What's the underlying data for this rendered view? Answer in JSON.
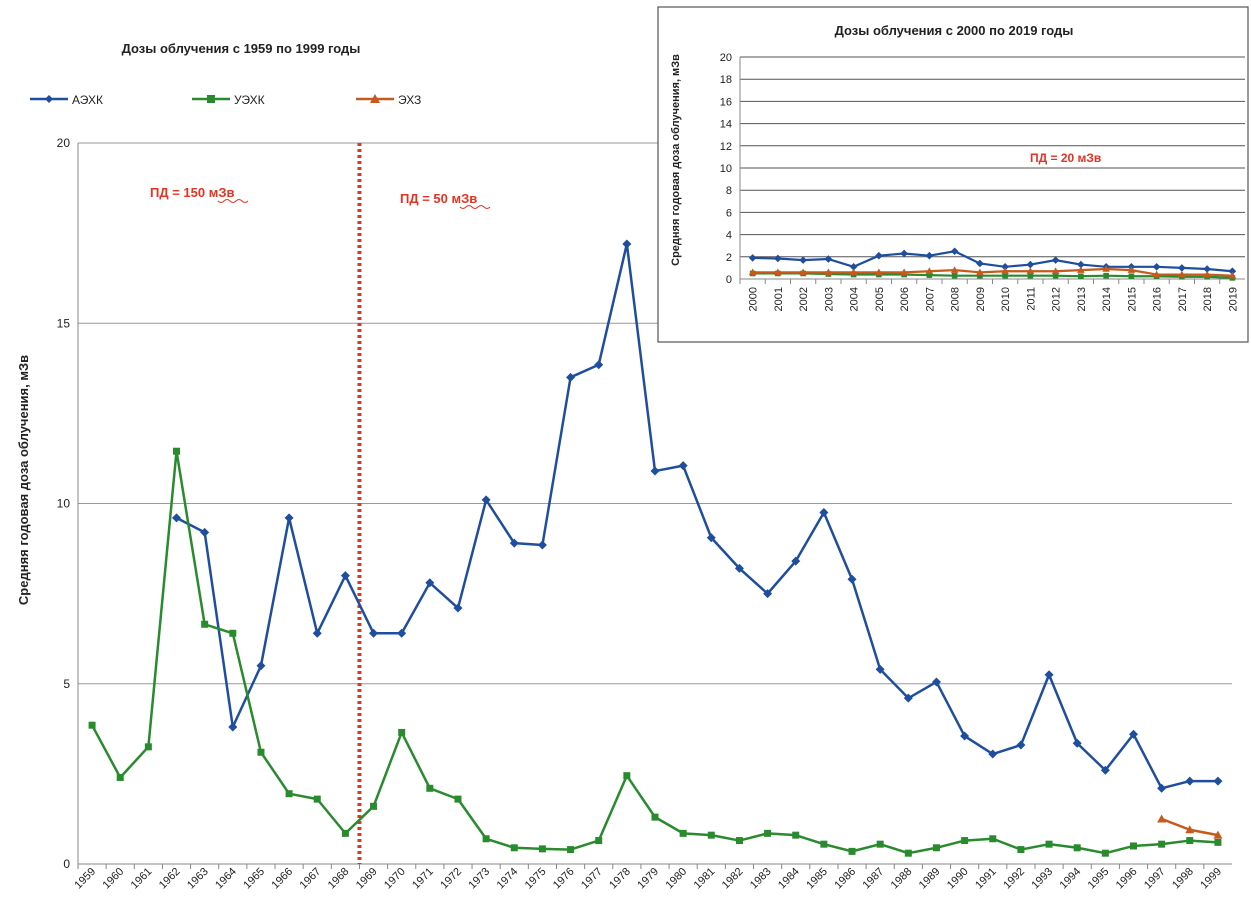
{
  "chart_data": [
    {
      "type": "line",
      "title": "Дозы облучения с 1959 по 1999 годы",
      "ylabel": "Средняя годовая  доза  облучения,  мЗв",
      "xlabel": "",
      "ylim": [
        0,
        20
      ],
      "yticks": [
        "0",
        "5",
        "10",
        "15",
        "20"
      ],
      "grid": true,
      "legend_position": "top-left",
      "x": [
        "1959",
        "1960",
        "1961",
        "1962",
        "1963",
        "1964",
        "1965",
        "1966",
        "1967",
        "1968",
        "1969",
        "1970",
        "1971",
        "1972",
        "1973",
        "1974",
        "1975",
        "1976",
        "1977",
        "1978",
        "1979",
        "1980",
        "1981",
        "1982",
        "1983",
        "1984",
        "1985",
        "1986",
        "1987",
        "1988",
        "1989",
        "1990",
        "1991",
        "1992",
        "1993",
        "1994",
        "1995",
        "1996",
        "1997",
        "1998",
        "1999"
      ],
      "series": [
        {
          "name": "АЭХК",
          "color": "#1f4e9f",
          "marker": "diamond",
          "values": [
            null,
            null,
            null,
            9.6,
            9.2,
            3.8,
            5.5,
            9.6,
            6.4,
            8.0,
            6.4,
            6.4,
            7.8,
            7.1,
            10.1,
            8.9,
            8.85,
            13.5,
            13.85,
            17.2,
            10.9,
            11.05,
            9.05,
            8.2,
            7.5,
            8.4,
            9.75,
            7.9,
            5.4,
            4.6,
            5.05,
            3.55,
            3.05,
            3.3,
            5.25,
            3.35,
            2.6,
            3.6,
            2.1,
            2.3,
            2.3
          ]
        },
        {
          "name": "УЭХК",
          "color": "#2a8a2e",
          "marker": "square",
          "values": [
            3.85,
            2.4,
            3.25,
            11.45,
            6.65,
            6.4,
            3.1,
            1.95,
            1.8,
            0.85,
            1.6,
            3.65,
            2.1,
            1.8,
            0.7,
            0.45,
            0.42,
            0.4,
            0.65,
            2.45,
            1.3,
            0.85,
            0.8,
            0.65,
            0.85,
            0.8,
            0.55,
            0.35,
            0.55,
            0.3,
            0.45,
            0.65,
            0.7,
            0.4,
            0.55,
            0.45,
            0.3,
            0.5,
            0.55,
            0.65,
            0.6
          ]
        },
        {
          "name": "ЭХЗ",
          "color": "#c65a1c",
          "marker": "triangle",
          "values": [
            null,
            null,
            null,
            null,
            null,
            null,
            null,
            null,
            null,
            null,
            null,
            null,
            null,
            null,
            null,
            null,
            null,
            null,
            null,
            null,
            null,
            null,
            null,
            null,
            null,
            null,
            null,
            null,
            null,
            null,
            null,
            null,
            null,
            null,
            null,
            null,
            null,
            null,
            1.25,
            0.95,
            0.8
          ]
        }
      ],
      "annotations": [
        {
          "text": "ПД = 150 мЗв",
          "color": "#e53323"
        },
        {
          "text": "ПД = 50 мЗв",
          "color": "#e53323"
        }
      ],
      "threshold_line": {
        "between": [
          "1968",
          "1969"
        ],
        "color": "#e53323",
        "style": "dotted"
      }
    },
    {
      "type": "line",
      "title": "Дозы облучения с  2000 по 2019 годы",
      "ylabel": "Средняя  годовая  доза облучения,  мЗв",
      "xlabel": "",
      "ylim": [
        0,
        20
      ],
      "yticks": [
        "0",
        "2",
        "4",
        "6",
        "8",
        "10",
        "12",
        "14",
        "16",
        "18",
        "20"
      ],
      "grid": true,
      "x": [
        "2000",
        "2001",
        "2002",
        "2003",
        "2004",
        "2005",
        "2006",
        "2007",
        "2008",
        "2009",
        "2010",
        "2011",
        "2012",
        "2013",
        "2014",
        "2015",
        "2016",
        "2017",
        "2018",
        "2019"
      ],
      "series": [
        {
          "name": "АЭХК",
          "color": "#1f4e9f",
          "marker": "diamond",
          "values": [
            1.9,
            1.85,
            1.7,
            1.8,
            1.1,
            2.1,
            2.3,
            2.1,
            2.5,
            1.4,
            1.1,
            1.3,
            1.7,
            1.3,
            1.1,
            1.1,
            1.1,
            1.0,
            0.9,
            0.7
          ]
        },
        {
          "name": "УЭХК",
          "color": "#2a8a2e",
          "marker": "square",
          "values": [
            0.5,
            0.5,
            0.5,
            0.45,
            0.4,
            0.4,
            0.4,
            0.35,
            0.3,
            0.3,
            0.3,
            0.3,
            0.3,
            0.25,
            0.3,
            0.25,
            0.25,
            0.2,
            0.2,
            0.1
          ]
        },
        {
          "name": "ЭХЗ",
          "color": "#c65a1c",
          "marker": "triangle",
          "values": [
            0.6,
            0.6,
            0.6,
            0.6,
            0.6,
            0.6,
            0.6,
            0.7,
            0.8,
            0.6,
            0.7,
            0.7,
            0.7,
            0.8,
            0.9,
            0.8,
            0.4,
            0.4,
            0.4,
            0.3
          ]
        }
      ],
      "annotations": [
        {
          "text": "ПД = 20 мЗв",
          "color": "#e53323"
        }
      ]
    }
  ]
}
